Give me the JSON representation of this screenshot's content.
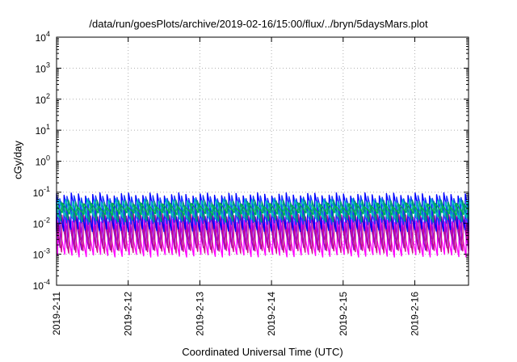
{
  "chart_data": {
    "type": "line",
    "title": "/data/run/goesPlots/archive/2019-02-16/15:00/flux/../bryn/5daysMars.plot",
    "xlabel": "Coordinated Universal Time (UTC)",
    "ylabel": "cGy/day",
    "x_ticks": [
      "2019-2-11",
      "2019-2-12",
      "2019-2-13",
      "2019-2-14",
      "2019-2-15",
      "2019-2-16"
    ],
    "xlim": [
      "2019-02-11T00:00",
      "2019-02-16T18:00"
    ],
    "y_scale": "log",
    "ylim": [
      0.0001,
      10000
    ],
    "y_ticks": [
      {
        "base": "10",
        "exp": "-4"
      },
      {
        "base": "10",
        "exp": "-3"
      },
      {
        "base": "10",
        "exp": "-2"
      },
      {
        "base": "10",
        "exp": "-1"
      },
      {
        "base": "10",
        "exp": "0"
      },
      {
        "base": "10",
        "exp": "1"
      },
      {
        "base": "10",
        "exp": "2"
      },
      {
        "base": "10",
        "exp": "3"
      },
      {
        "base": "10",
        "exp": "4"
      }
    ],
    "grid": true,
    "legend": "none",
    "pattern": {
      "period_hours": 2.4,
      "sawtooth": "sharp rise then decay within each period, repeating throughout the range"
    },
    "series": [
      {
        "color": "#ff00ff",
        "peak": 0.012,
        "trough": 0.0009
      },
      {
        "color": "#9400d3",
        "peak": 0.02,
        "trough": 0.0015
      },
      {
        "color": "#a000c8",
        "peak": 0.03,
        "trough": 0.003
      },
      {
        "color": "#c71585",
        "peak": 0.018,
        "trough": 0.0012
      },
      {
        "color": "#0000ff",
        "peak": 0.085,
        "trough": 0.006
      },
      {
        "color": "#1e3cff",
        "peak": 0.07,
        "trough": 0.01
      },
      {
        "color": "#009e73",
        "peak": 0.05,
        "trough": 0.012
      },
      {
        "color": "#00c0c0",
        "peak": 0.055,
        "trough": 0.015
      },
      {
        "color": "#00b050",
        "peak": 0.04,
        "trough": 0.02
      }
    ]
  }
}
